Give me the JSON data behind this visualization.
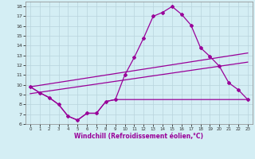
{
  "xlabel": "Windchill (Refroidissement éolien,°C)",
  "x": [
    0,
    1,
    2,
    3,
    4,
    5,
    6,
    7,
    8,
    9,
    10,
    11,
    12,
    13,
    14,
    15,
    16,
    17,
    18,
    19,
    20,
    21,
    22,
    23
  ],
  "y_main": [
    9.8,
    9.2,
    8.7,
    8.0,
    6.8,
    6.4,
    7.1,
    7.1,
    8.3,
    8.5,
    11.0,
    12.8,
    14.8,
    17.0,
    17.4,
    18.0,
    17.2,
    16.1,
    13.8,
    12.9,
    11.9,
    10.2,
    9.5,
    8.5
  ],
  "y_upper": [
    9.8,
    9.95,
    10.1,
    10.25,
    10.4,
    10.55,
    10.7,
    10.85,
    11.0,
    11.15,
    11.3,
    11.45,
    11.6,
    11.75,
    11.9,
    12.05,
    12.2,
    12.35,
    12.5,
    12.65,
    12.8,
    12.95,
    13.1,
    13.25
  ],
  "y_lower": [
    9.1,
    9.24,
    9.38,
    9.52,
    9.66,
    9.8,
    9.94,
    10.08,
    10.22,
    10.36,
    10.5,
    10.64,
    10.78,
    10.92,
    11.06,
    11.2,
    11.34,
    11.48,
    11.62,
    11.76,
    11.9,
    12.04,
    12.18,
    12.32
  ],
  "y_bottom": [
    9.8,
    9.2,
    8.7,
    8.0,
    6.8,
    6.4,
    7.1,
    7.1,
    8.3,
    8.5,
    8.5,
    8.5,
    8.5,
    8.5,
    8.5,
    8.5,
    8.5,
    8.5,
    8.5,
    8.5,
    8.5,
    8.5,
    8.5,
    8.5
  ],
  "line_color": "#990099",
  "bg_color": "#d4eef4",
  "grid_color": "#b8d4dc",
  "ylim": [
    6,
    18.5
  ],
  "xlim": [
    -0.5,
    23.5
  ],
  "yticks": [
    6,
    7,
    8,
    9,
    10,
    11,
    12,
    13,
    14,
    15,
    16,
    17,
    18
  ],
  "xticks": [
    0,
    1,
    2,
    3,
    4,
    5,
    6,
    7,
    8,
    9,
    10,
    11,
    12,
    13,
    14,
    15,
    16,
    17,
    18,
    19,
    20,
    21,
    22,
    23
  ],
  "marker": "D",
  "marker_size": 2.0,
  "linewidth": 0.9
}
